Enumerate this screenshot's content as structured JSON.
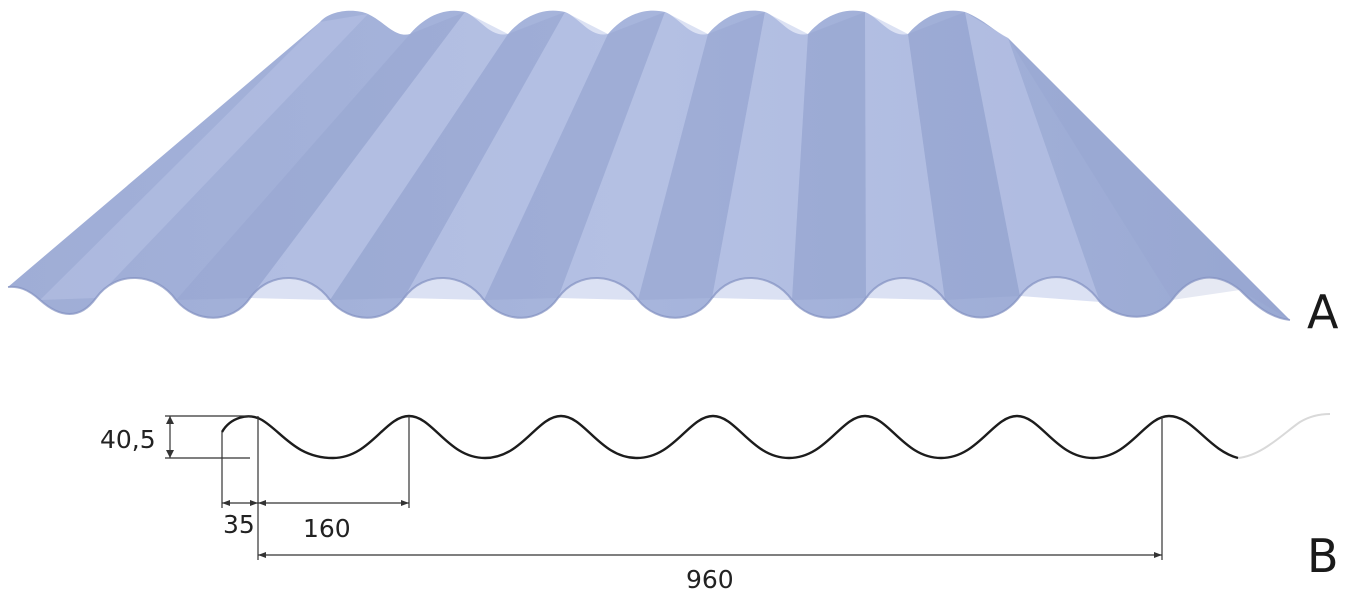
{
  "labels": {
    "view_a": "A",
    "view_b": "B"
  },
  "dimensions": {
    "height": "40,5",
    "edge_offset": "35",
    "pitch": "160",
    "cover_width": "960"
  },
  "colors": {
    "sheet_fill": "#a9b6dc",
    "sheet_shadow": "#7f8fbf",
    "sheet_highlight": "#c9d2ee",
    "profile_stroke": "#1c1c1c"
  }
}
